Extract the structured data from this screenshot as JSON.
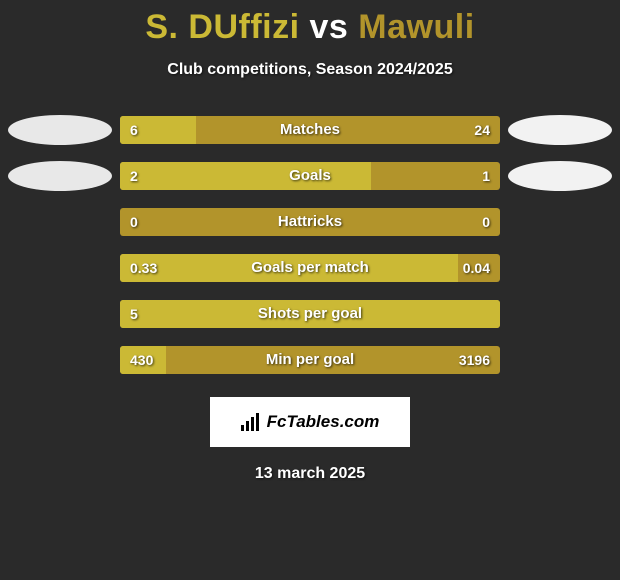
{
  "title_left": "S. DUffizi",
  "title_vs": " vs ",
  "title_right": "Mawuli",
  "subtitle": "Club competitions, Season 2024/2025",
  "date": "13 march 2025",
  "logo_text": "FcTables.com",
  "colors": {
    "title_left": "#cbb935",
    "title_vs": "#ffffff",
    "title_right": "#b2942b",
    "bar_base": "#b2942b",
    "bar_fill": "#cbb935",
    "ellipse_left": "#e8e8e8",
    "ellipse_right": "#f2f2f2",
    "background": "#2a2a2a"
  },
  "bars": [
    {
      "label": "Matches",
      "left": "6",
      "right": "24",
      "fill_pct": 20,
      "full": false,
      "show_left_ellipse": true,
      "show_right_ellipse": true
    },
    {
      "label": "Goals",
      "left": "2",
      "right": "1",
      "fill_pct": 66,
      "full": false,
      "show_left_ellipse": true,
      "show_right_ellipse": true
    },
    {
      "label": "Hattricks",
      "left": "0",
      "right": "0",
      "fill_pct": 0,
      "full": false,
      "show_left_ellipse": false,
      "show_right_ellipse": false
    },
    {
      "label": "Goals per match",
      "left": "0.33",
      "right": "0.04",
      "fill_pct": 89,
      "full": false,
      "show_left_ellipse": false,
      "show_right_ellipse": false
    },
    {
      "label": "Shots per goal",
      "left": "5",
      "right": "",
      "fill_pct": 100,
      "full": true,
      "show_left_ellipse": false,
      "show_right_ellipse": false
    },
    {
      "label": "Min per goal",
      "left": "430",
      "right": "3196",
      "fill_pct": 12,
      "full": false,
      "show_left_ellipse": false,
      "show_right_ellipse": false
    }
  ]
}
